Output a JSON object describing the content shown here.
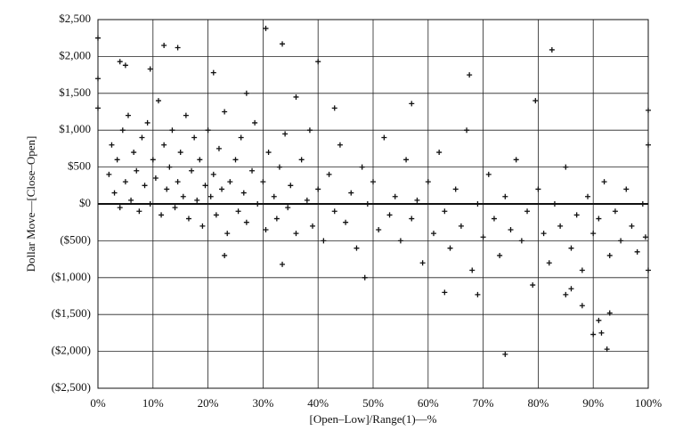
{
  "chart_data": {
    "type": "scatter",
    "x_label": "[Open–Low]/Range(1)—%",
    "y_label": "Dollar Move—[Close–Open]",
    "color": "#111111",
    "grid": true,
    "xlim": [
      0,
      100
    ],
    "ylim": [
      -2500,
      2500
    ],
    "xticks": [
      {
        "value": 0,
        "label": "0%"
      },
      {
        "value": 10,
        "label": "10%"
      },
      {
        "value": 20,
        "label": "20%"
      },
      {
        "value": 30,
        "label": "30%"
      },
      {
        "value": 40,
        "label": "40%"
      },
      {
        "value": 50,
        "label": "50%"
      },
      {
        "value": 60,
        "label": "60%"
      },
      {
        "value": 70,
        "label": "70%"
      },
      {
        "value": 80,
        "label": "80%"
      },
      {
        "value": 90,
        "label": "90%"
      },
      {
        "value": 100,
        "label": "100%"
      }
    ],
    "yticks": [
      {
        "value": 2500,
        "label": "$2,500"
      },
      {
        "value": 2000,
        "label": "$2,000"
      },
      {
        "value": 1500,
        "label": "$1,500"
      },
      {
        "value": 1000,
        "label": "$1,000"
      },
      {
        "value": 500,
        "label": "$500"
      },
      {
        "value": 0,
        "label": "$0"
      },
      {
        "value": -500,
        "label": "($500)"
      },
      {
        "value": -1000,
        "label": "($1,000)"
      },
      {
        "value": -1500,
        "label": "($1,500)"
      },
      {
        "value": -2000,
        "label": "($2,000)"
      },
      {
        "value": -2500,
        "label": "($2,500)"
      }
    ],
    "x": [
      12,
      14.5,
      30.5,
      33.5,
      40,
      82.5,
      67.5,
      4,
      5,
      9.5,
      21,
      79.5,
      74,
      90,
      92.5,
      91.5,
      91,
      93,
      33.5,
      23,
      63,
      69,
      0,
      0,
      0,
      100,
      100,
      100,
      57,
      27,
      43,
      36,
      85,
      88,
      86,
      2,
      2.5,
      3,
      3.5,
      4,
      4.5,
      5,
      5.5,
      6,
      6.5,
      7,
      7.5,
      8,
      8.5,
      9,
      9.5,
      10,
      10.5,
      11,
      11.5,
      12,
      12.5,
      13,
      13.5,
      14,
      14.5,
      15,
      15.5,
      16,
      16.5,
      17,
      17.5,
      18,
      18.5,
      19,
      19.5,
      20,
      20.5,
      21,
      21.5,
      22,
      22.5,
      23,
      23.5,
      24,
      25,
      25.5,
      26,
      26.5,
      27,
      28,
      28.5,
      29,
      30,
      30.5,
      31,
      32,
      32.5,
      33,
      34,
      34.5,
      35,
      36,
      37,
      38,
      38.5,
      39,
      40,
      41,
      42,
      43,
      44,
      45,
      46,
      47,
      48,
      48.5,
      49,
      50,
      51,
      52,
      53,
      54,
      55,
      56,
      57,
      58,
      59,
      60,
      61,
      62,
      63,
      64,
      65,
      66,
      67,
      68,
      69,
      70,
      71,
      72,
      73,
      74,
      75,
      76,
      77,
      78,
      79,
      80,
      81,
      82,
      83,
      84,
      85,
      86,
      87,
      88,
      89,
      90,
      91,
      92,
      93,
      94,
      95,
      96,
      97,
      98,
      99,
      99.5
    ],
    "values": [
      2150,
      2120,
      2380,
      2170,
      1930,
      2090,
      1750,
      1930,
      1880,
      1830,
      1780,
      1400,
      -2040,
      -1770,
      -1970,
      -1750,
      -1580,
      -1480,
      -820,
      -700,
      -1200,
      -1230,
      2250,
      1700,
      1300,
      1270,
      800,
      -900,
      1360,
      1500,
      1300,
      1450,
      -1230,
      -1380,
      -1150,
      400,
      800,
      150,
      600,
      -50,
      1000,
      300,
      1200,
      50,
      700,
      450,
      -100,
      900,
      250,
      1100,
      0,
      600,
      350,
      1400,
      -150,
      800,
      200,
      500,
      1000,
      -50,
      300,
      700,
      100,
      1200,
      -200,
      450,
      900,
      50,
      600,
      -300,
      250,
      1000,
      100,
      400,
      -150,
      750,
      200,
      1250,
      -400,
      300,
      600,
      -100,
      900,
      150,
      -250,
      450,
      1100,
      0,
      300,
      -350,
      700,
      100,
      -200,
      500,
      950,
      -50,
      250,
      -400,
      600,
      50,
      1000,
      -300,
      200,
      -500,
      400,
      -100,
      800,
      -250,
      150,
      -600,
      500,
      -1000,
      0,
      300,
      -350,
      900,
      -150,
      100,
      -500,
      600,
      -200,
      50,
      -800,
      300,
      -400,
      700,
      -100,
      -600,
      200,
      -300,
      1000,
      -900,
      0,
      -450,
      400,
      -200,
      -700,
      100,
      -350,
      600,
      -500,
      -100,
      -1100,
      200,
      -400,
      -800,
      0,
      -300,
      500,
      -600,
      -150,
      -900,
      100,
      -400,
      -200,
      300,
      -700,
      -100,
      -500,
      200,
      -300,
      -650,
      0,
      -450
    ]
  }
}
